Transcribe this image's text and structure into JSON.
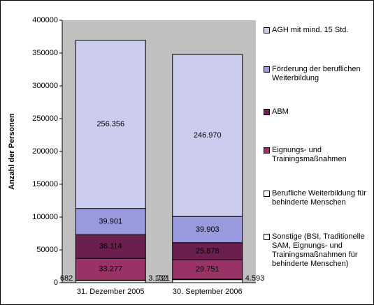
{
  "chart_data": {
    "type": "stacked-bar",
    "y_label": "Anzahl der Personen",
    "categories": [
      "31. Dezember 2005",
      "30. September 2006"
    ],
    "series": [
      {
        "name": "Sonstige (BSI, Traditionelle SAM, Eignungs- und Trainingsmaßnahmen für behinderte Menschen)",
        "color": "#ffffff",
        "values": [
          3132,
          4593
        ],
        "value_labels": [
          "3.132",
          "4.593"
        ]
      },
      {
        "name": "Berufliche Weiterbildung für behinderte Menschen",
        "color": "#ffffff",
        "values": [
          682,
          721
        ],
        "value_labels": [
          "682",
          "721"
        ]
      },
      {
        "name": "Eignungs- und Trainingsmaßnahmen",
        "color": "#993366",
        "values": [
          33277,
          29751
        ],
        "value_labels": [
          "33.277",
          "29.751"
        ]
      },
      {
        "name": "ABM",
        "color": "#6b1f4f",
        "values": [
          36114,
          25878
        ],
        "value_labels": [
          "36.114",
          "25.878"
        ]
      },
      {
        "name": "Förderung der beruflichen Weiterbildung",
        "color": "#9999dd",
        "values": [
          39901,
          39903
        ],
        "value_labels": [
          "39.901",
          "39.903"
        ]
      },
      {
        "name": "AGH mit mind. 15 Std.",
        "color": "#ccccee",
        "values": [
          256356,
          246970
        ],
        "value_labels": [
          "256.356",
          "246.970"
        ]
      }
    ],
    "ylim": [
      0,
      400000
    ],
    "yticks": [
      0,
      50000,
      100000,
      150000,
      200000,
      250000,
      300000,
      350000,
      400000
    ]
  }
}
